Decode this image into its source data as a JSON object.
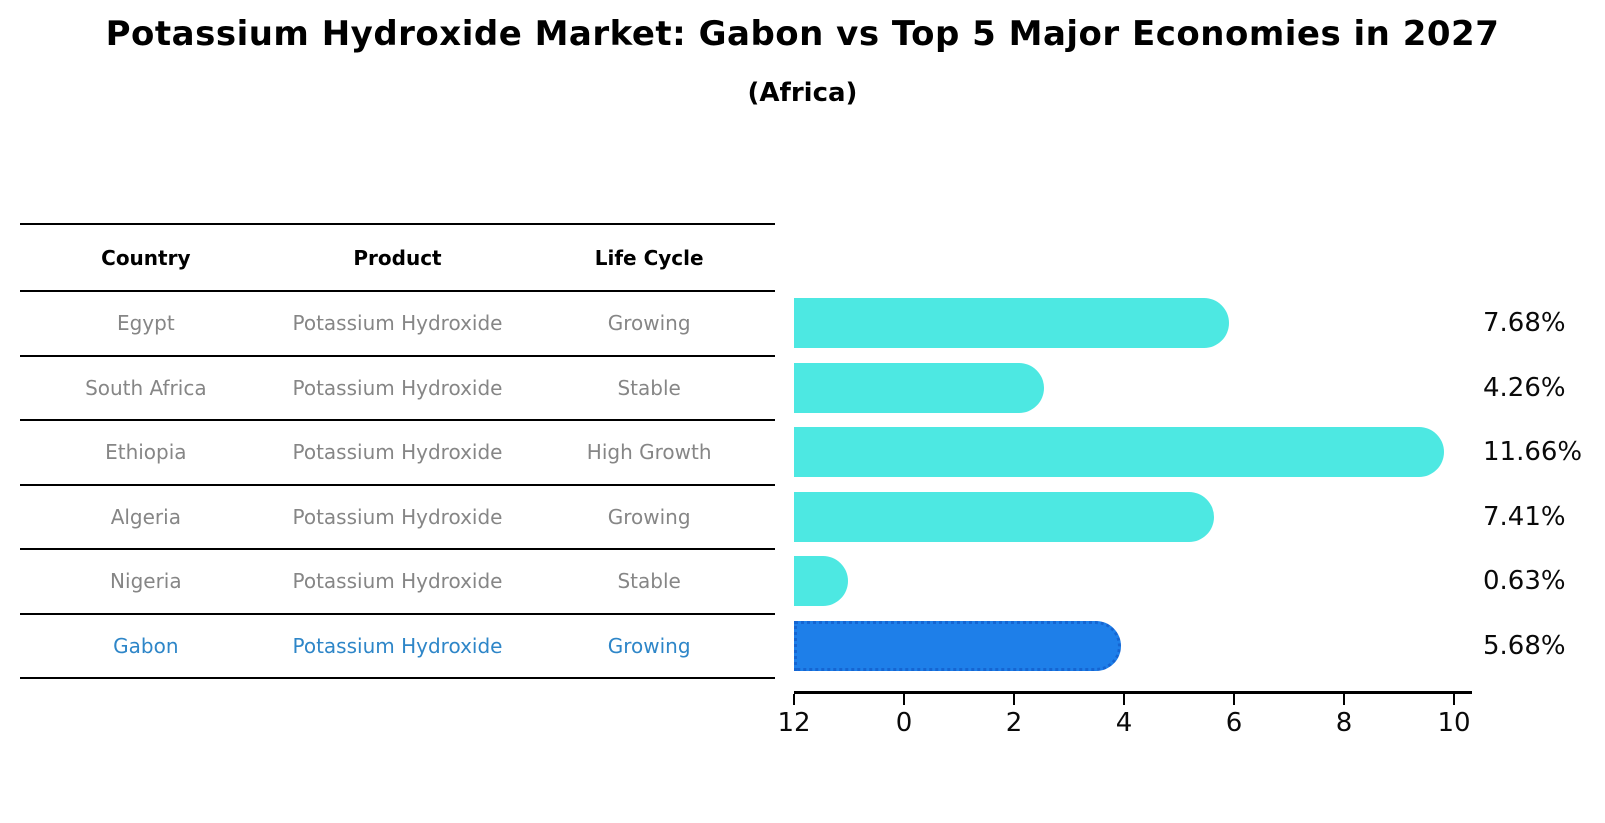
{
  "title": "Potassium Hydroxide Market: Gabon vs Top 5 Major Economies in 2027",
  "subtitle": "(Africa)",
  "table": {
    "headers": [
      "Country",
      "Product",
      "Life Cycle"
    ],
    "rows": [
      {
        "country": "Egypt",
        "product": "Potassium Hydroxide",
        "life_cycle": "Growing"
      },
      {
        "country": "South Africa",
        "product": "Potassium Hydroxide",
        "life_cycle": "Stable"
      },
      {
        "country": "Ethiopia",
        "product": "Potassium Hydroxide",
        "life_cycle": "High Growth"
      },
      {
        "country": "Algeria",
        "product": "Potassium Hydroxide",
        "life_cycle": "Growing"
      },
      {
        "country": "Nigeria",
        "product": "Potassium Hydroxide",
        "life_cycle": "Stable"
      },
      {
        "country": "Gabon",
        "product": "Potassium Hydroxide",
        "life_cycle": "Growing"
      }
    ]
  },
  "chart_data": {
    "type": "bar",
    "orientation": "horizontal",
    "categories": [
      "Egypt",
      "South Africa",
      "Ethiopia",
      "Algeria",
      "Nigeria",
      "Gabon"
    ],
    "values": [
      7.68,
      4.26,
      11.66,
      7.41,
      0.63,
      5.68
    ],
    "value_labels": [
      "7.68%",
      "4.26%",
      "11.66%",
      "7.41%",
      "0.63%",
      "5.68%"
    ],
    "x_ticks": [
      0,
      2,
      4,
      6,
      8,
      10,
      12
    ],
    "xlim": [
      0,
      12.3
    ],
    "xlabel": "",
    "ylabel": "",
    "grid": false,
    "legend": "none",
    "highlight_index": 5,
    "highlight_country": "Gabon",
    "bar_color": "#4de8e2",
    "highlight_bar_color": "#1e7fe9",
    "highlight_border_color": "#1565d2",
    "highlight_text_color": "#2e86c8"
  }
}
